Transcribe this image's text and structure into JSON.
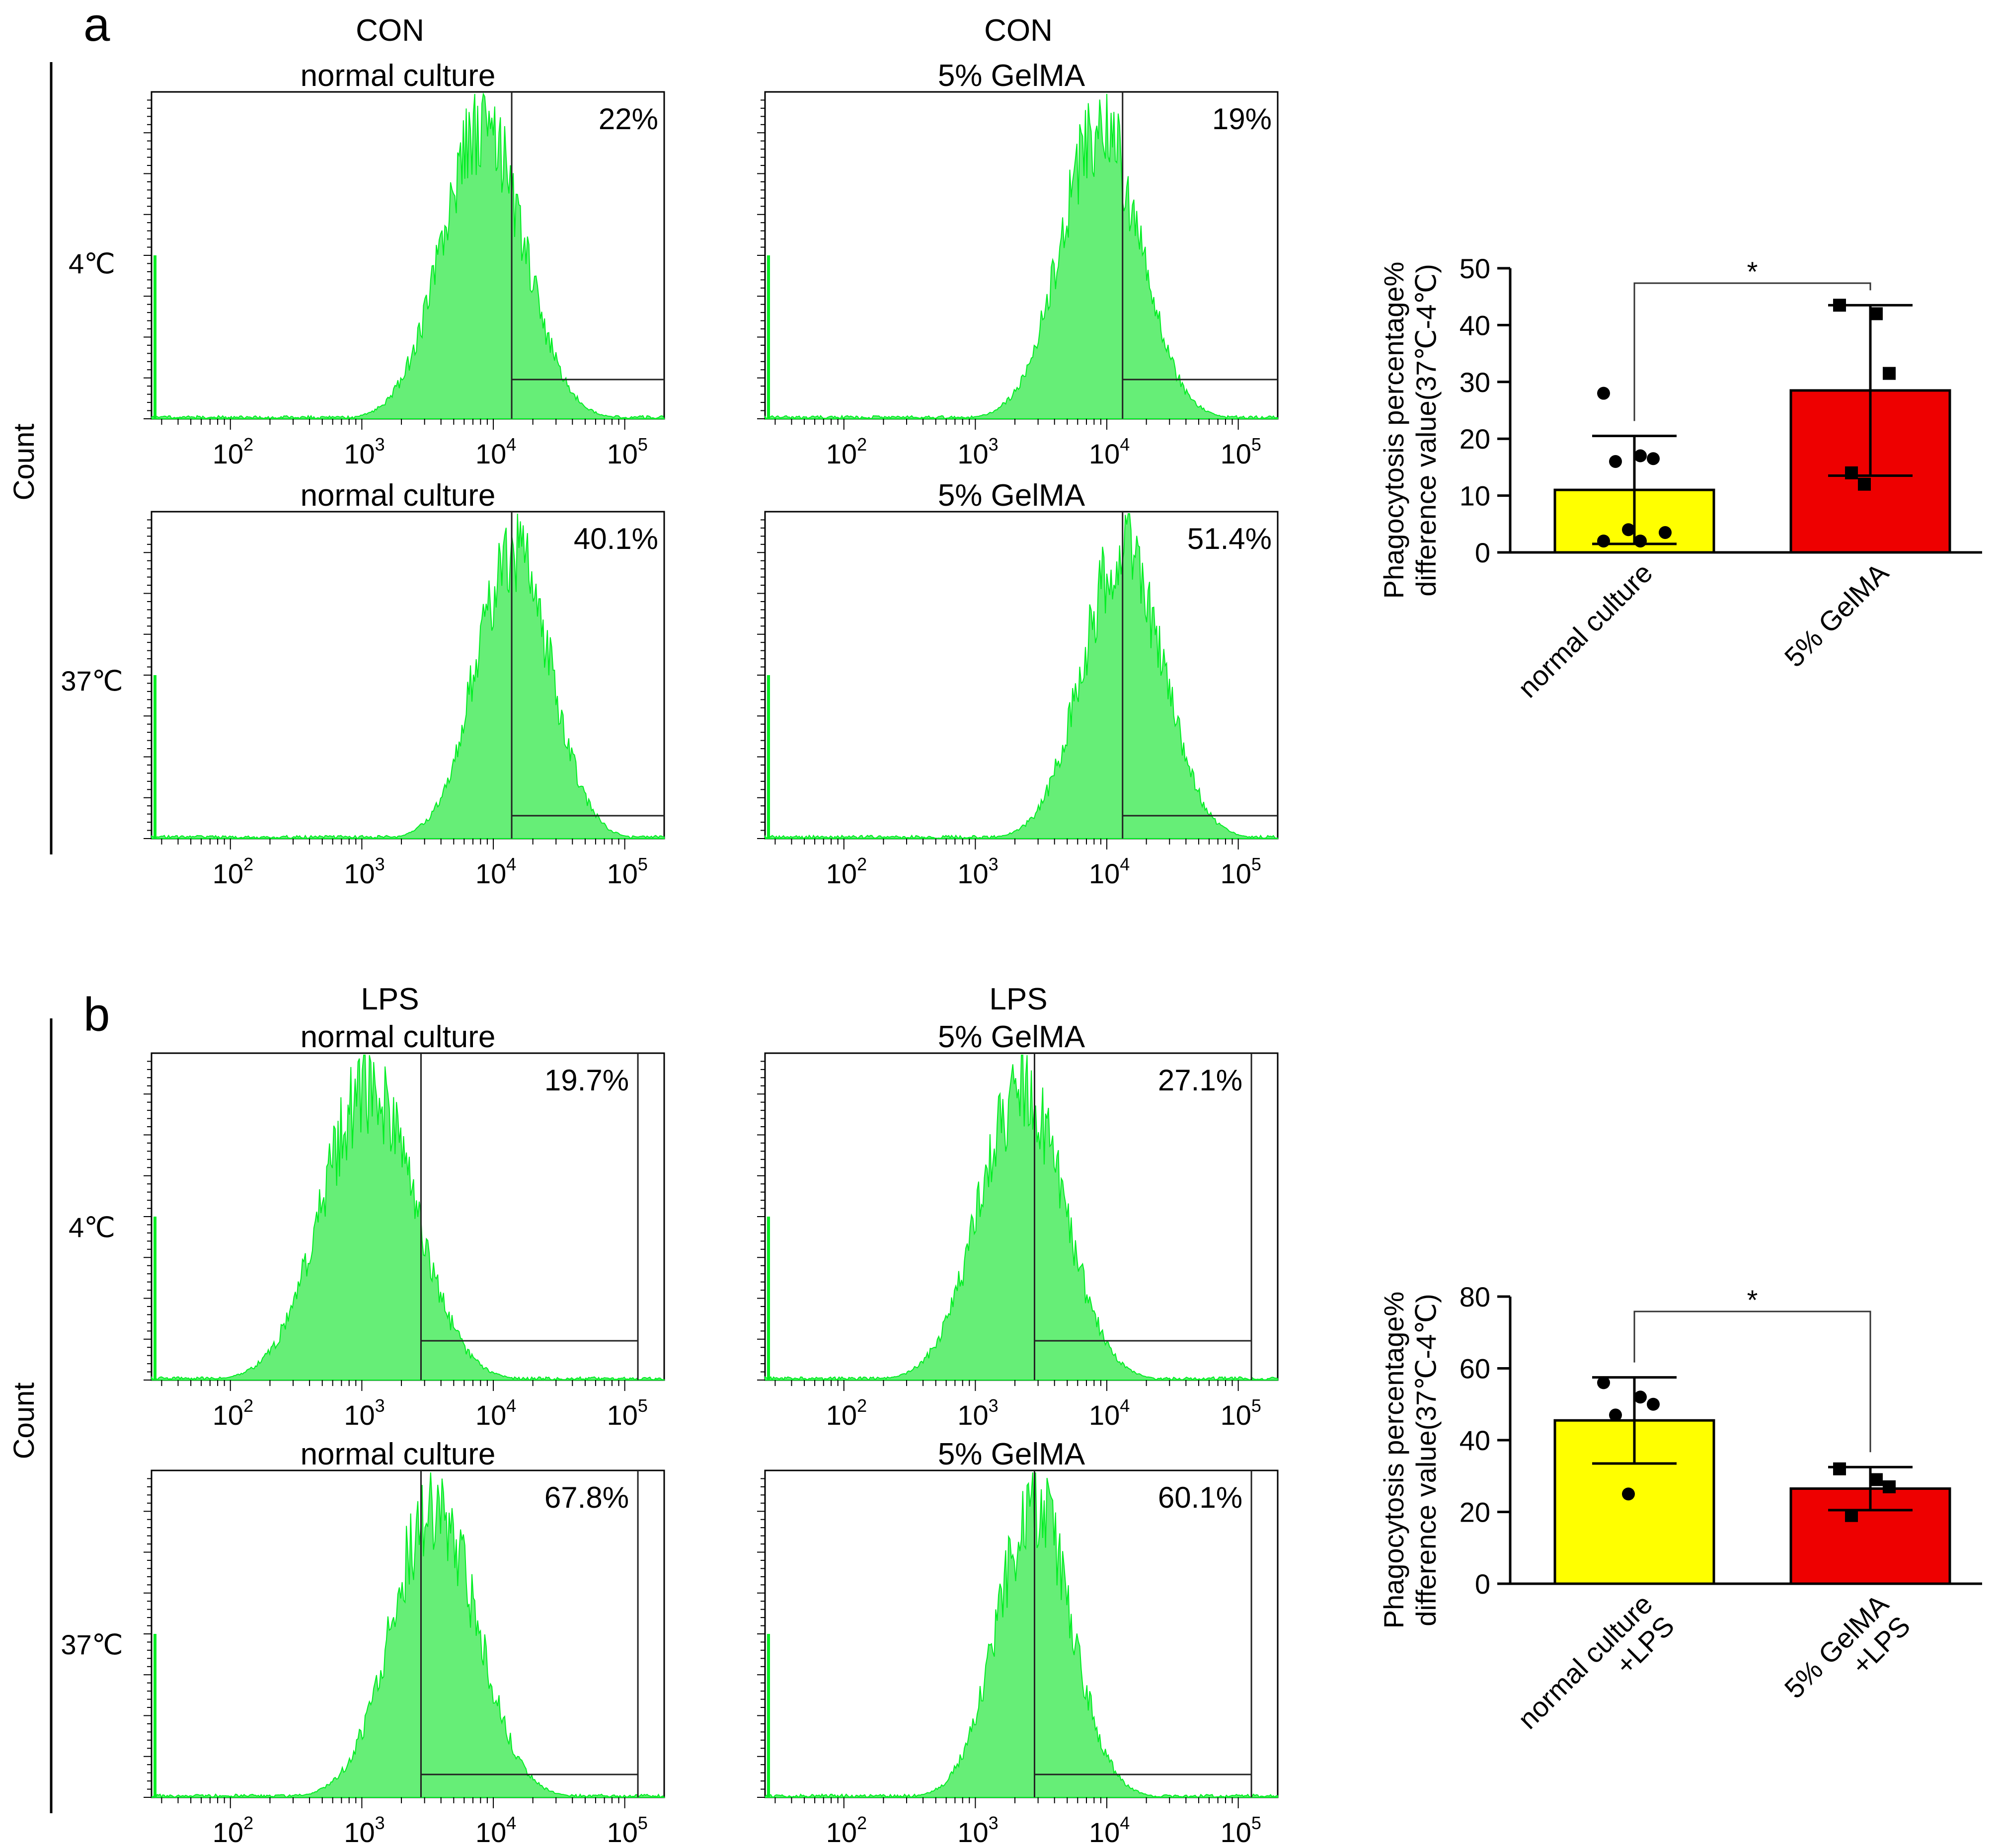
{
  "colors": {
    "histogram_fill": "#66ee77",
    "histogram_edge": "#00ee22",
    "bar_yellow": "#ffff00",
    "bar_red": "#ee0000",
    "axis": "#000000"
  },
  "panels": [
    {
      "letter": "a",
      "column_titles": [
        {
          "condition": "CON",
          "treatment": "normal culture"
        },
        {
          "condition": "CON",
          "treatment": "5% GelMA"
        }
      ],
      "row_labels": [
        "4℃",
        "37℃"
      ],
      "count_label": "Count",
      "histograms": [
        {
          "title": "normal culture",
          "percent": "22%",
          "peak_log": 3.92,
          "width": 0.31,
          "gate_log": 4.14
        },
        {
          "title": "5% GelMA",
          "percent": "19%",
          "peak_log": 3.95,
          "width": 0.3,
          "gate_log": 4.12
        },
        {
          "title": "normal culture",
          "percent": "40.1%",
          "peak_log": 4.15,
          "width": 0.28,
          "gate_log": 4.14
        },
        {
          "title": "5% GelMA",
          "percent": "51.4%",
          "peak_log": 4.12,
          "width": 0.3,
          "gate_log": 4.12
        }
      ],
      "x_axis_ticks": [
        {
          "base": "10",
          "exp": "2"
        },
        {
          "base": "10",
          "exp": "3"
        },
        {
          "base": "10",
          "exp": "4"
        },
        {
          "base": "10",
          "exp": "5"
        }
      ]
    },
    {
      "letter": "b",
      "column_titles": [
        {
          "condition": "LPS",
          "treatment": "normal culture"
        },
        {
          "condition": "LPS",
          "treatment": "5% GelMA"
        }
      ],
      "row_labels": [
        "4℃",
        "37℃"
      ],
      "count_label": "Count",
      "histograms": [
        {
          "title": "normal culture",
          "percent": "19.7%",
          "peak_log": 3.05,
          "width": 0.35,
          "gate_log": 3.45
        },
        {
          "title": "5% GelMA",
          "percent": "27.1%",
          "peak_log": 3.35,
          "width": 0.32,
          "gate_log": 3.45
        },
        {
          "title": "normal culture",
          "percent": "67.8%",
          "peak_log": 3.55,
          "width": 0.32,
          "gate_log": 3.45
        },
        {
          "title": "5% GelMA",
          "percent": "60.1%",
          "peak_log": 3.45,
          "width": 0.28,
          "gate_log": 3.45
        }
      ],
      "x_axis_ticks": [
        {
          "base": "10",
          "exp": "2"
        },
        {
          "base": "10",
          "exp": "3"
        },
        {
          "base": "10",
          "exp": "4"
        },
        {
          "base": "10",
          "exp": "5"
        }
      ]
    }
  ],
  "chart_data": [
    {
      "type": "bar",
      "title": "",
      "ylabel_line1": "Phagocytosis percentage%",
      "ylabel_line2": "difference value(37℃-4℃)",
      "categories": [
        [
          "normal culture"
        ],
        [
          "5% GelMA"
        ]
      ],
      "values": [
        11,
        28.5
      ],
      "errors": [
        9.5,
        15
      ],
      "points": [
        [
          28,
          17,
          16.5,
          16,
          4,
          3.5,
          2,
          2
        ],
        [
          43.5,
          42,
          31.5,
          14,
          12
        ]
      ],
      "point_markers": [
        "circle",
        "square"
      ],
      "ylim": [
        0,
        50
      ],
      "yticks": [
        0,
        10,
        20,
        30,
        40,
        50
      ],
      "significance": "*"
    },
    {
      "type": "bar",
      "title": "",
      "ylabel_line1": "Phagocytosis percentage%",
      "ylabel_line2": "difference value(37℃-4℃)",
      "categories": [
        [
          "normal culture",
          "+LPS"
        ],
        [
          "5% GelMA",
          "+LPS"
        ]
      ],
      "values": [
        45.5,
        26.5
      ],
      "errors": [
        12,
        6
      ],
      "points": [
        [
          56,
          52,
          50,
          47,
          25
        ],
        [
          32,
          29,
          27,
          19
        ]
      ],
      "point_markers": [
        "circle",
        "square"
      ],
      "ylim": [
        0,
        80
      ],
      "yticks": [
        0,
        20,
        40,
        60,
        80
      ],
      "significance": "*"
    }
  ]
}
